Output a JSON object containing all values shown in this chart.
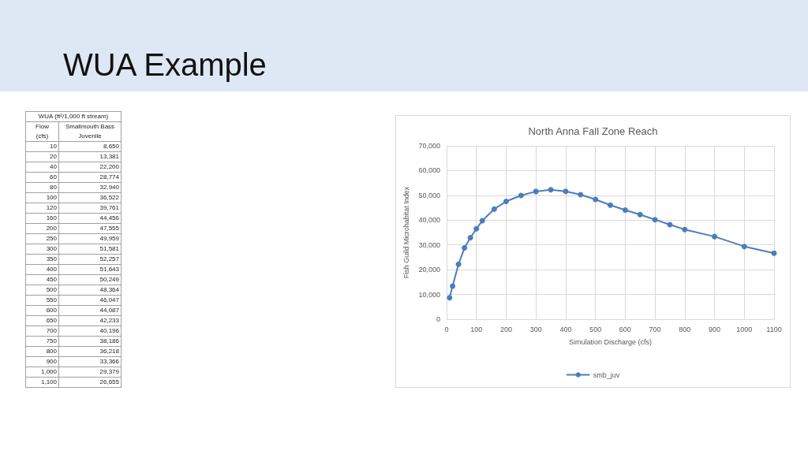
{
  "chart_data": [
    {
      "type": "other",
      "title": "WUA Example",
      "subtitle": "WUA (ft²/1,000 ft stream)",
      "xlabel": "Flow (cfs)",
      "categories": [
        "10",
        "20",
        "40",
        "60",
        "80",
        "100",
        "120",
        "160",
        "200",
        "250",
        "300",
        "350",
        "400",
        "450",
        "500",
        "550",
        "600",
        "650",
        "700",
        "750",
        "800",
        "900",
        "1,000",
        "1,100"
      ],
      "series": [
        {
          "name": "Smallmouth Bass Juvenile",
          "values": [
            8650,
            13381,
            22200,
            28774,
            32940,
            36522,
            39761,
            44456,
            47555,
            49959,
            51581,
            52257,
            51643,
            50249,
            48364,
            46047,
            44087,
            42233,
            40196,
            38186,
            36218,
            33366,
            29379,
            26655
          ],
          "value_labels": [
            "8,650",
            "13,381",
            "22,200",
            "28,774",
            "32,940",
            "36,522",
            "39,761",
            "44,456",
            "47,555",
            "49,959",
            "51,581",
            "52,257",
            "51,643",
            "50,249",
            "48,364",
            "46,047",
            "44,087",
            "42,233",
            "40,196",
            "38,186",
            "36,218",
            "33,366",
            "29,379",
            "26,655"
          ]
        }
      ]
    },
    {
      "type": "line",
      "title": "North Anna Fall Zone Reach",
      "xlabel": "Simulation Discharge (cfs)",
      "ylabel": "Fish Guild Microhabitat Index",
      "x": [
        10,
        20,
        40,
        60,
        80,
        100,
        120,
        160,
        200,
        250,
        300,
        350,
        400,
        450,
        500,
        550,
        600,
        650,
        700,
        750,
        800,
        900,
        1000,
        1100
      ],
      "series": [
        {
          "name": "smb_juv",
          "color": "#4a7ebb",
          "values": [
            8650,
            13381,
            22200,
            28774,
            32940,
            36522,
            39761,
            44456,
            47555,
            49959,
            51581,
            52257,
            51643,
            50249,
            48364,
            46047,
            44087,
            42233,
            40196,
            38186,
            36218,
            33366,
            29379,
            26655
          ]
        }
      ],
      "xlim": [
        0,
        1100
      ],
      "xticks": [
        0,
        100,
        200,
        300,
        400,
        500,
        600,
        700,
        800,
        900,
        1000,
        1100
      ],
      "ylim": [
        0,
        70000
      ],
      "yticks": [
        0,
        {
          "value": 10000,
          "label": "10,000"
        },
        {
          "value": 20000,
          "label": "20,000"
        },
        {
          "value": 30000,
          "label": "30,000"
        },
        {
          "value": 40000,
          "label": "40,000"
        },
        {
          "value": 50000,
          "label": "50,000"
        },
        {
          "value": 60000,
          "label": "60,000"
        },
        {
          "value": 70000,
          "label": "70,000"
        }
      ],
      "grid": true,
      "legend": "bottom",
      "marker": "circle",
      "line_style": "solid"
    }
  ]
}
